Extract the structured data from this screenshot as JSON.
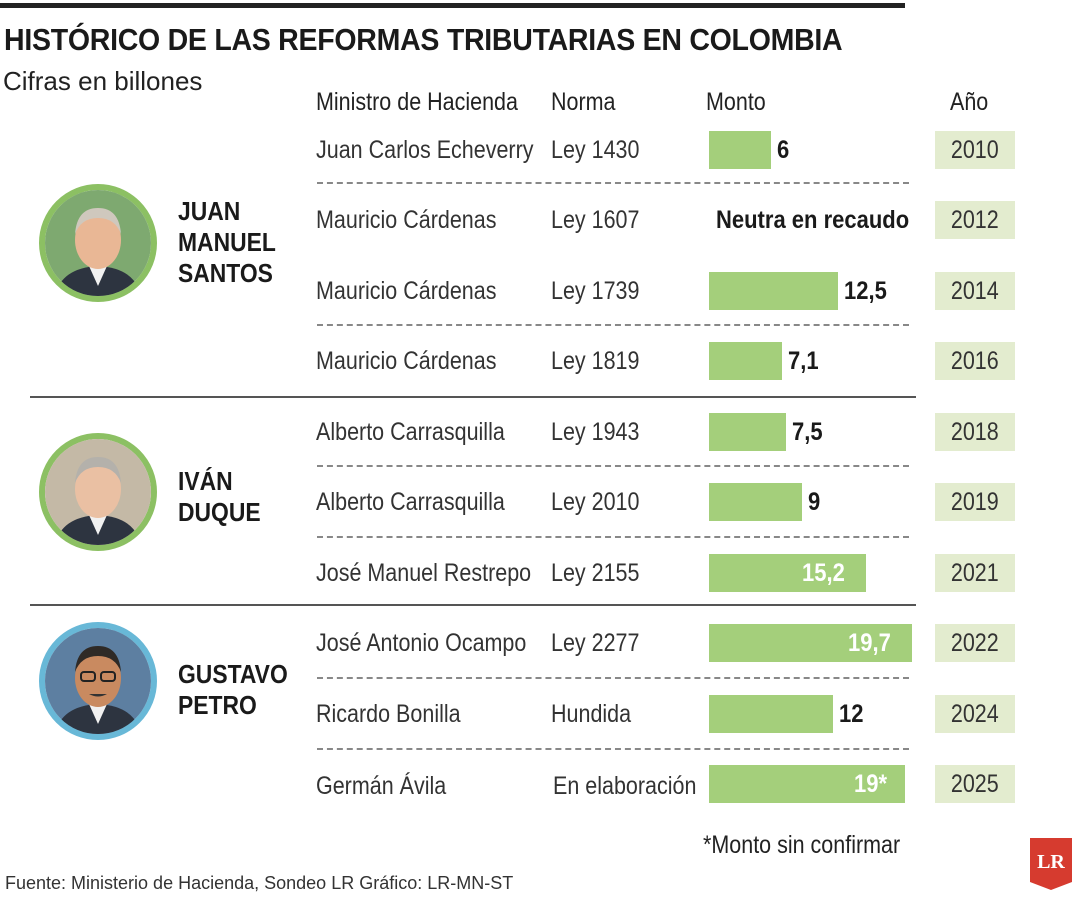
{
  "title": "HISTÓRICO DE LAS REFORMAS TRIBUTARIAS EN COLOMBIA",
  "subtitle": "Cifras en billones",
  "headers": {
    "minister": "Ministro de Hacienda",
    "norma": "Norma",
    "monto": "Monto",
    "year": "Año"
  },
  "presidents": [
    {
      "name_lines": [
        "JUAN",
        "MANUEL",
        "SANTOS"
      ],
      "ring_color": "#8cc063",
      "icon": "portrait-santos"
    },
    {
      "name_lines": [
        "IVÁN",
        "DUQUE"
      ],
      "ring_color": "#8cc063",
      "icon": "portrait-duque"
    },
    {
      "name_lines": [
        "GUSTAVO",
        "PETRO"
      ],
      "ring_color": "#68b8d7",
      "icon": "portrait-petro"
    }
  ],
  "rows": [
    {
      "minister": "Juan Carlos Echeverry",
      "norma": "Ley 1430",
      "amount": 6,
      "amount_label": "6",
      "year": "2010"
    },
    {
      "minister": "Mauricio Cárdenas",
      "norma": "Ley 1607",
      "amount": null,
      "amount_label": "Neutra en recaudo",
      "year": "2012"
    },
    {
      "minister": "Mauricio Cárdenas",
      "norma": "Ley 1739",
      "amount": 12.5,
      "amount_label": "12,5",
      "year": "2014"
    },
    {
      "minister": "Mauricio Cárdenas",
      "norma": "Ley 1819",
      "amount": 7.1,
      "amount_label": "7,1",
      "year": "2016"
    },
    {
      "minister": "Alberto Carrasquilla",
      "norma": "Ley 1943",
      "amount": 7.5,
      "amount_label": "7,5",
      "year": "2018"
    },
    {
      "minister": "Alberto Carrasquilla",
      "norma": "Ley 2010",
      "amount": 9,
      "amount_label": "9",
      "year": "2019"
    },
    {
      "minister": "José Manuel Restrepo",
      "norma": "Ley 2155",
      "amount": 15.2,
      "amount_label": "15,2",
      "year": "2021"
    },
    {
      "minister": "José Antonio Ocampo",
      "norma": "Ley 2277",
      "amount": 19.7,
      "amount_label": "19,7",
      "year": "2022"
    },
    {
      "minister": "Ricardo Bonilla",
      "norma": "Hundida",
      "amount": 12,
      "amount_label": "12",
      "year": "2024"
    },
    {
      "minister": "Germán Ávila",
      "norma": "En elaboración",
      "amount": 19,
      "amount_label": "19*",
      "year": "2025"
    }
  ],
  "note": "*Monto sin confirmar",
  "source": "Fuente: Ministerio de Hacienda, Sondeo LR  Gráfico: LR-MN-ST",
  "logo_text": "LR",
  "colors": {
    "bar": "#a4cf7b",
    "year_bg": "#e3eccf",
    "logo": "#d63b2f"
  },
  "chart_data": {
    "type": "bar",
    "categories": [
      "2010",
      "2012",
      "2014",
      "2016",
      "2018",
      "2019",
      "2021",
      "2022",
      "2024",
      "2025"
    ],
    "values": [
      6,
      null,
      12.5,
      7.1,
      7.5,
      9,
      15.2,
      19.7,
      12,
      19
    ],
    "title": "HISTÓRICO DE LAS REFORMAS TRIBUTARIAS EN COLOMBIA",
    "subtitle": "Cifras en billones",
    "orientation": "horizontal",
    "grid": false
  }
}
